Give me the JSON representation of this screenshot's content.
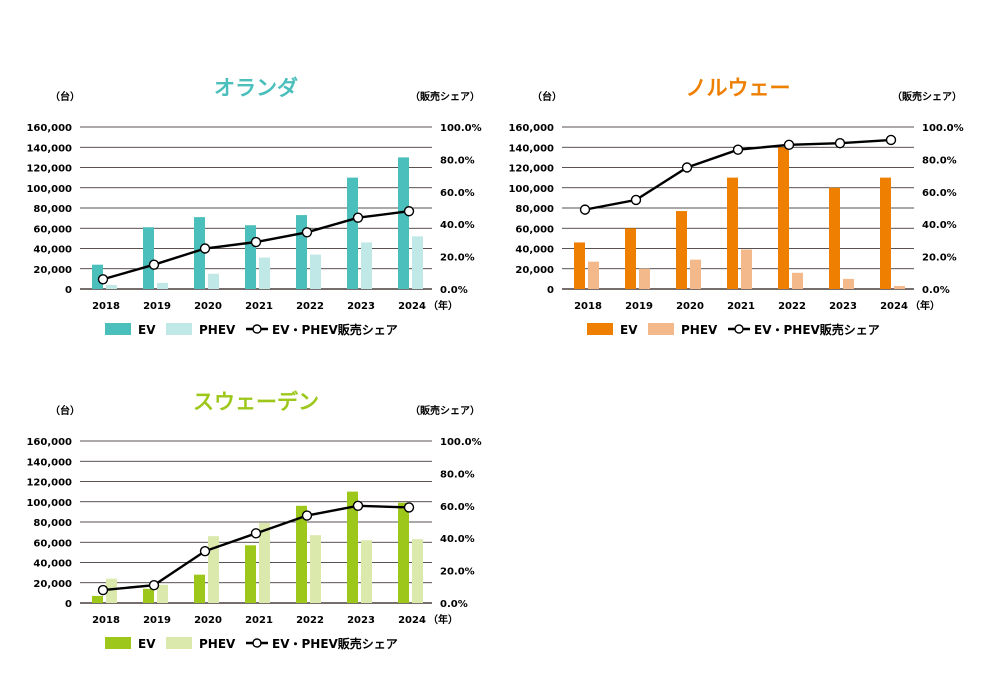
{
  "units": {
    "left": "（台）",
    "right": "（販売シェア）",
    "year": "（年）"
  },
  "legend": {
    "ev": "EV",
    "phev": "PHEV",
    "share": "EV・PHEV販売シェア"
  },
  "chart_data": [
    {
      "type": "bar",
      "title": "オランダ",
      "colors": {
        "ev": "#4bbfbb",
        "phev": "#bfe8e6",
        "title": "#4bbfbb"
      },
      "categories": [
        "2018",
        "2019",
        "2020",
        "2021",
        "2022",
        "2023",
        "2024"
      ],
      "yticks": [
        "0",
        "20,000",
        "40,000",
        "60,000",
        "80,000",
        "100,000",
        "120,000",
        "140,000",
        "160,000"
      ],
      "y2ticks": [
        "0.0%",
        "20.0%",
        "40.0%",
        "60.0%",
        "80.0%",
        "100.0%"
      ],
      "ylim": [
        0,
        160000
      ],
      "y2lim": [
        0,
        100
      ],
      "series": [
        {
          "name": "EV",
          "values": [
            24000,
            61000,
            71000,
            63000,
            73000,
            110000,
            130000
          ]
        },
        {
          "name": "PHEV",
          "values": [
            4000,
            6000,
            15000,
            31000,
            34000,
            46000,
            52000
          ]
        },
        {
          "name": "EV・PHEV販売シェア",
          "values": [
            6,
            15,
            25,
            29,
            35,
            44,
            48
          ]
        }
      ]
    },
    {
      "type": "bar",
      "title": "ノルウェー",
      "colors": {
        "ev": "#ee7f00",
        "phev": "#f3b98b",
        "title": "#ee7f00"
      },
      "categories": [
        "2018",
        "2019",
        "2020",
        "2021",
        "2022",
        "2023",
        "2024"
      ],
      "yticks": [
        "0",
        "20,000",
        "40,000",
        "60,000",
        "80,000",
        "100,000",
        "120,000",
        "140,000",
        "160,000"
      ],
      "y2ticks": [
        "0.0%",
        "20.0%",
        "40.0%",
        "60.0%",
        "80.0%",
        "100.0%"
      ],
      "ylim": [
        0,
        160000
      ],
      "y2lim": [
        0,
        100
      ],
      "series": [
        {
          "name": "EV",
          "values": [
            46000,
            60000,
            77000,
            110000,
            140000,
            100000,
            110000
          ]
        },
        {
          "name": "PHEV",
          "values": [
            27000,
            20000,
            29000,
            39000,
            16000,
            10000,
            3000
          ]
        },
        {
          "name": "EV・PHEV販売シェア",
          "values": [
            49,
            55,
            75,
            86,
            89,
            90,
            92
          ]
        }
      ]
    },
    {
      "type": "bar",
      "title": "スウェーデン",
      "colors": {
        "ev": "#9dc81b",
        "phev": "#dbe9ad",
        "title": "#9dc81b"
      },
      "categories": [
        "2018",
        "2019",
        "2020",
        "2021",
        "2022",
        "2023",
        "2024"
      ],
      "yticks": [
        "0",
        "20,000",
        "40,000",
        "60,000",
        "80,000",
        "100,000",
        "120,000",
        "140,000",
        "160,000"
      ],
      "y2ticks": [
        "0.0%",
        "20.0%",
        "40.0%",
        "60.0%",
        "80.0%",
        "100.0%"
      ],
      "ylim": [
        0,
        160000
      ],
      "y2lim": [
        0,
        100
      ],
      "series": [
        {
          "name": "EV",
          "values": [
            7000,
            14000,
            28000,
            57000,
            96000,
            110000,
            99000
          ]
        },
        {
          "name": "PHEV",
          "values": [
            24000,
            18000,
            66000,
            79000,
            67000,
            62000,
            63000
          ]
        },
        {
          "name": "EV・PHEV販売シェア",
          "values": [
            8,
            11,
            32,
            43,
            54,
            60,
            59
          ]
        }
      ]
    }
  ]
}
